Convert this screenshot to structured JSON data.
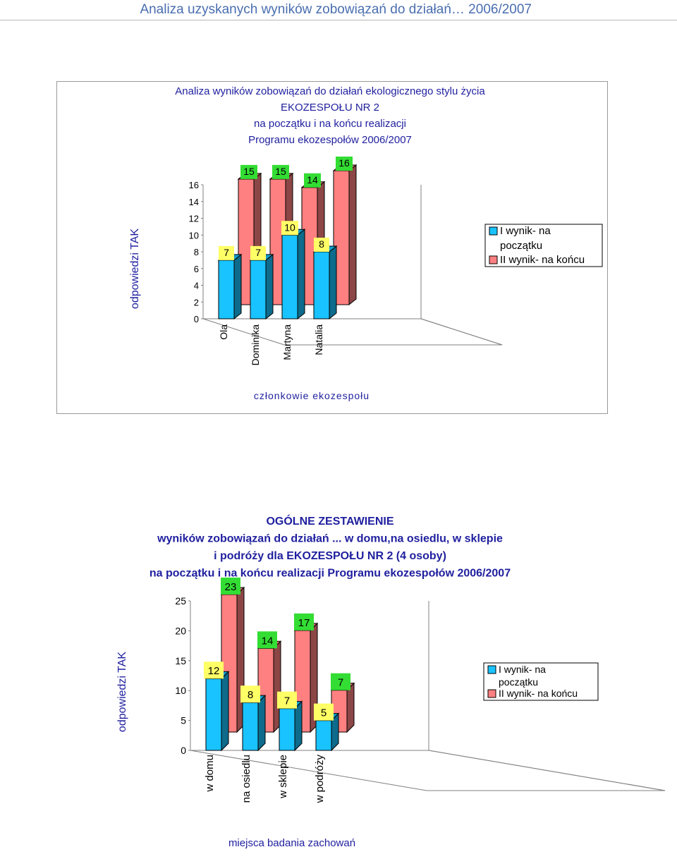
{
  "page": {
    "header_title": "Analiza uzyskanych wyników zobowiązań do działań… 2006/2007"
  },
  "chart_data": [
    {
      "type": "bar",
      "title_lines": [
        "Analiza wyników zobowiązań do działań ekologicznego stylu życia",
        "EKOZESPOŁU NR 2",
        "na początku i na końcu realizacji",
        "Programu ekozespołów 2006/2007"
      ],
      "ylabel": "odpowiedzi TAK",
      "xlabel": "członkowie ekozespołu",
      "categories": [
        "Ola",
        "Dominika",
        "Martyna",
        "Natalia"
      ],
      "yticks": [
        "16",
        "14",
        "12",
        "10",
        "8",
        "6",
        "4",
        "2",
        "0"
      ],
      "ylim": [
        0,
        16
      ],
      "series": [
        {
          "name": "I wynik- na początku",
          "values": [
            7,
            7,
            10,
            8
          ],
          "labels": [
            "7",
            "7",
            "10",
            "8"
          ],
          "color": "#19c3ff"
        },
        {
          "name": "II wynik- na końcu",
          "values": [
            15,
            15,
            14,
            16
          ],
          "labels": [
            "15",
            "15",
            "14",
            "16"
          ],
          "color": "#ff8080"
        }
      ],
      "legend": {
        "position": "right",
        "entries": [
          "I wynik- na",
          "początku",
          "II wynik- na końcu"
        ]
      },
      "label_bg": "#33dd33",
      "first_label_bg": "#ffff66"
    },
    {
      "type": "bar",
      "title_lines": [
        "OGÓLNE ZESTAWIENIE",
        "wyników zobowiązań do działań ... w domu,na osiedlu, w sklepie",
        "i podróży dla EKOZESPOŁU NR 2 (4 osoby)",
        "na początku i na końcu realizacji Programu ekozespołów 2006/2007"
      ],
      "ylabel": "odpowiedzi TAK",
      "xlabel": "miejsca badania zachowań",
      "categories": [
        "w domu",
        "na osiedlu",
        "w sklepie",
        "w podróży"
      ],
      "yticks": [
        "25",
        "20",
        "15",
        "10",
        "5",
        "0"
      ],
      "ylim": [
        0,
        25
      ],
      "series": [
        {
          "name": "I wynik- na początku",
          "values": [
            12,
            8,
            7,
            5
          ],
          "labels": [
            "12",
            "8",
            "7",
            "5"
          ],
          "color": "#19c3ff"
        },
        {
          "name": "II wynik- na końcu",
          "values": [
            23,
            14,
            17,
            7
          ],
          "labels": [
            "23",
            "14",
            "17",
            "7"
          ],
          "color": "#ff8080"
        }
      ],
      "legend": {
        "position": "right",
        "entries": [
          "I wynik- na",
          "początku",
          "II wynik- na końcu"
        ]
      },
      "label_bg": "#33dd33",
      "first_label_bg": "#ffff66"
    }
  ]
}
